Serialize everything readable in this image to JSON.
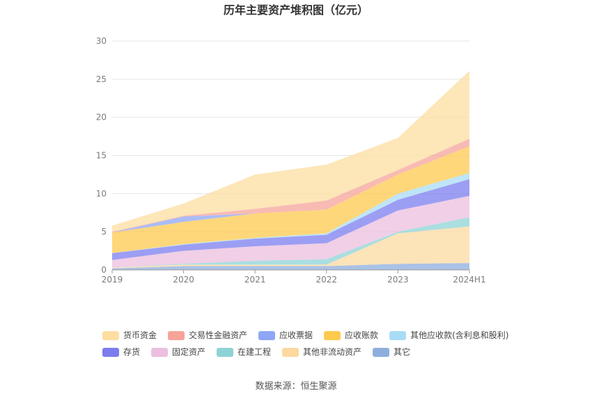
{
  "chart_data": {
    "type": "area",
    "stacked": true,
    "title": "历年主要资产堆积图（亿元）",
    "categories": [
      "2019",
      "2020",
      "2021",
      "2022",
      "2023",
      "2024H1"
    ],
    "ylim": [
      0,
      30
    ],
    "yticks": [
      0,
      5,
      10,
      15,
      20,
      25,
      30
    ],
    "grid": true,
    "legend_position": "bottom",
    "series": [
      {
        "name": "其它",
        "color": "#8eaedd",
        "values": [
          0.2,
          0.5,
          0.5,
          0.5,
          0.8,
          0.9
        ]
      },
      {
        "name": "其他非流动资产",
        "color": "#fcd9a0",
        "values": [
          0.1,
          0.2,
          0.2,
          0.2,
          4.0,
          4.8
        ]
      },
      {
        "name": "在建工程",
        "color": "#8dd3d6",
        "values": [
          0.0,
          0.1,
          0.5,
          0.7,
          0.2,
          1.2
        ]
      },
      {
        "name": "固定资产",
        "color": "#ebbfdf",
        "values": [
          1.0,
          1.7,
          1.9,
          2.1,
          2.8,
          2.8
        ]
      },
      {
        "name": "存货",
        "color": "#7b7def",
        "values": [
          0.9,
          0.8,
          1.0,
          1.1,
          1.4,
          2.2
        ]
      },
      {
        "name": "其他应收款(含利息和股利)",
        "color": "#a8dcf5",
        "values": [
          0.0,
          0.1,
          0.1,
          0.2,
          0.8,
          0.8
        ]
      },
      {
        "name": "应收账款",
        "color": "#fdca4e",
        "values": [
          2.7,
          2.9,
          3.2,
          3.1,
          2.5,
          3.5
        ]
      },
      {
        "name": "应收票据",
        "color": "#8da6f5",
        "values": [
          0.0,
          0.7,
          0.0,
          0.0,
          0.0,
          0.0
        ]
      },
      {
        "name": "交易性金融资产",
        "color": "#f6a49a",
        "values": [
          0.1,
          0.1,
          0.6,
          1.2,
          0.6,
          1.0
        ]
      },
      {
        "name": "货币资金",
        "color": "#fcdea0",
        "values": [
          0.8,
          1.6,
          4.5,
          4.7,
          4.2,
          8.9
        ]
      }
    ],
    "legend_order": [
      "货币资金",
      "交易性金融资产",
      "应收票据",
      "应收账款",
      "其他应收款(含利息和股利)",
      "存货",
      "固定资产",
      "在建工程",
      "其他非流动资产",
      "其它"
    ]
  },
  "source": "数据来源：恒生聚源"
}
